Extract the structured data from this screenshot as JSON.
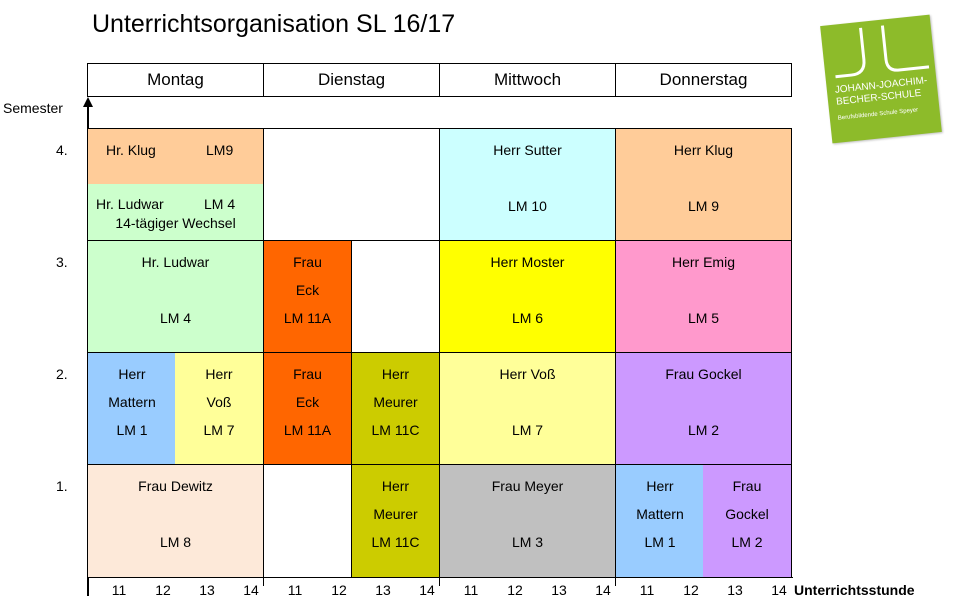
{
  "title": "Unterrichtsorganisation SL 16/17",
  "days": [
    "Montag",
    "Dienstag",
    "Mittwoch",
    "Donnerstag"
  ],
  "y_axis_label": "Semester",
  "semesters": [
    "4.",
    "3.",
    "2.",
    "1."
  ],
  "x_axis_label": "Unterrichtsstunde",
  "ticks": [
    "11",
    "12",
    "13",
    "14",
    "11",
    "12",
    "13",
    "14",
    "11",
    "12",
    "13",
    "14",
    "11",
    "12",
    "13",
    "14"
  ],
  "logo": {
    "line1": "JOHANN-JOACHIM-",
    "line2": "BECHER-SCHULE",
    "line3": "Berufsbildende Schule Speyer"
  },
  "colors": {
    "orange_light": "#ffcc99",
    "green_light": "#ccffcc",
    "cyan_light": "#ccffff",
    "orange": "#ff6600",
    "yellow": "#ffff00",
    "pink": "#ff99cc",
    "blue": "#99ccff",
    "yellow_light": "#ffff99",
    "olive": "#cccc00",
    "violet": "#cc99ff",
    "peach": "#fde9d9",
    "grey": "#c0c0c0"
  },
  "cells": {
    "c1": {
      "name": "Hr. Klug",
      "lm": "LM9"
    },
    "c2": {
      "name": "Hr. Ludwar",
      "lm": "LM 4",
      "note": "14-tägiger Wechsel"
    },
    "c3": {
      "line1": "Herr Sutter",
      "line2": "LM 10"
    },
    "c4": {
      "line1": "Herr Klug",
      "line2": "LM 9"
    },
    "c5": {
      "line1": "Hr. Ludwar",
      "line2": "LM 4"
    },
    "c6": {
      "line1": "Frau",
      "line2": "Eck",
      "line3": "LM 11A"
    },
    "c7": {
      "line1": "Herr Moster",
      "line2": "LM 6"
    },
    "c8": {
      "line1": "Herr Emig",
      "line2": "LM 5"
    },
    "c9": {
      "line1": "Herr",
      "line2": "Mattern",
      "line3": "LM 1"
    },
    "c10": {
      "line1": "Herr",
      "line2": "Voß",
      "line3": "LM 7"
    },
    "c11": {
      "line1": "Frau",
      "line2": "Eck",
      "line3": "LM 11A"
    },
    "c12": {
      "line1": "Herr",
      "line2": "Meurer",
      "line3": "LM 11C"
    },
    "c13": {
      "line1": "Herr Voß",
      "line2": "LM 7"
    },
    "c14": {
      "line1": "Frau Gockel",
      "line2": "LM 2"
    },
    "c15": {
      "line1": "Frau Dewitz",
      "line2": "LM 8"
    },
    "c16": {
      "line1": "Herr",
      "line2": "Meurer",
      "line3": "LM 11C"
    },
    "c17": {
      "line1": "Frau Meyer",
      "line2": "LM 3"
    },
    "c18": {
      "line1": "Herr",
      "line2": "Mattern",
      "line3": "LM 1"
    },
    "c19": {
      "line1": "Frau",
      "line2": "Gockel",
      "line3": "LM 2"
    }
  }
}
